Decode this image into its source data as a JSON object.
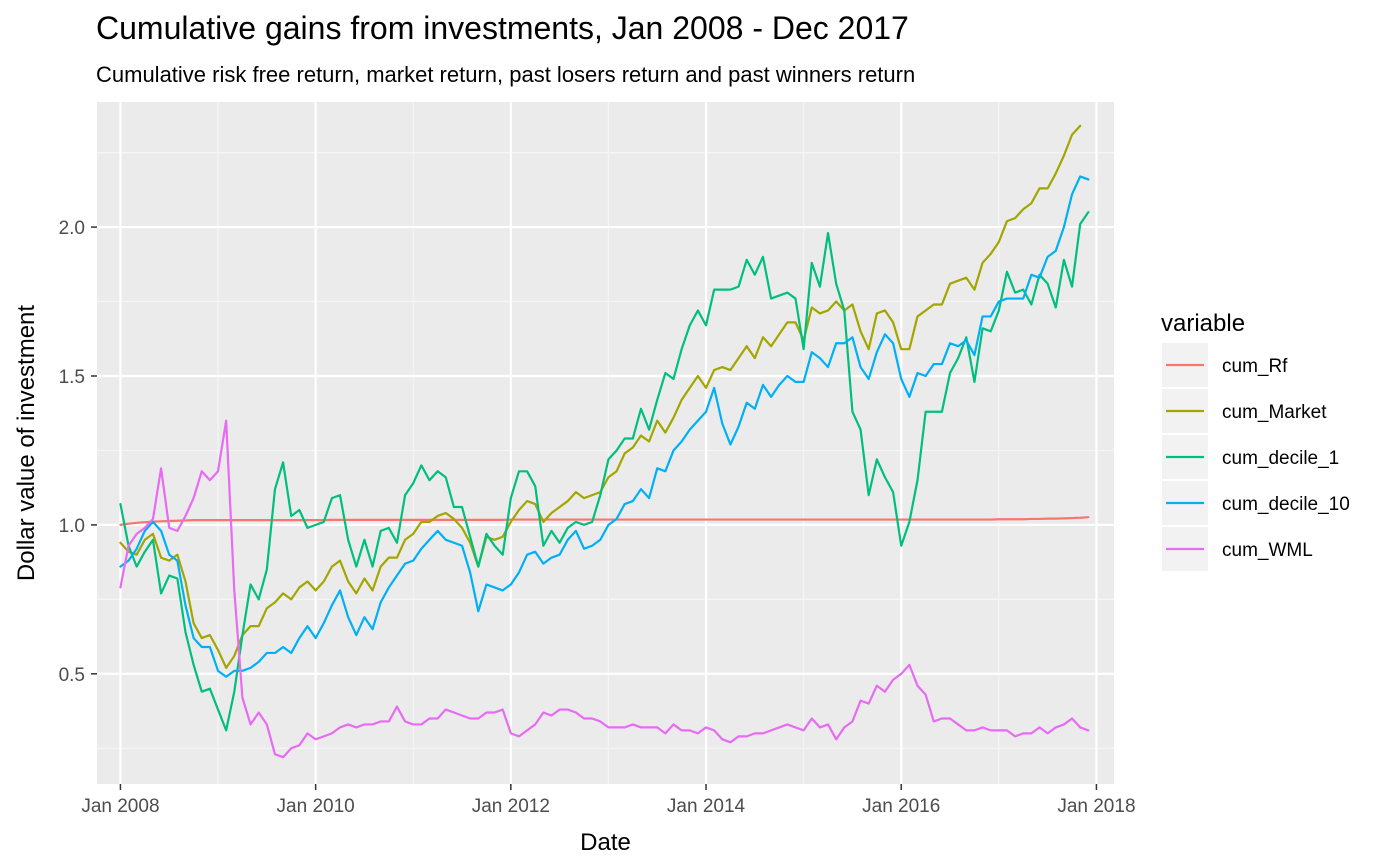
{
  "chart_data": {
    "type": "line",
    "title": "Cumulative gains from investments, Jan 2008 - Dec 2017",
    "subtitle": "Cumulative risk free return, market return, past losers return and past winners return",
    "xlabel": "Date",
    "ylabel": "Dollar value of investment",
    "xlim": [
      2007.76,
      2018.18
    ],
    "ylim": [
      0.13,
      2.42
    ],
    "x_ticks": [
      {
        "value": 2008,
        "label": "Jan 2008"
      },
      {
        "value": 2010,
        "label": "Jan 2010"
      },
      {
        "value": 2012,
        "label": "Jan 2012"
      },
      {
        "value": 2014,
        "label": "Jan 2014"
      },
      {
        "value": 2016,
        "label": "Jan 2016"
      },
      {
        "value": 2018,
        "label": "Jan 2018"
      }
    ],
    "y_ticks": [
      {
        "value": 0.5,
        "label": "0.5"
      },
      {
        "value": 1.0,
        "label": "1.0"
      },
      {
        "value": 1.5,
        "label": "1.5"
      },
      {
        "value": 2.0,
        "label": "2.0"
      }
    ],
    "grid": true,
    "legend": {
      "title": "variable",
      "position": "right"
    },
    "x_start": "Jan 2008",
    "x_step": "1 month",
    "series": [
      {
        "name": "cum_Rf",
        "color": "#F8766D",
        "values": [
          1.0,
          1.004,
          1.007,
          1.009,
          1.011,
          1.012,
          1.013,
          1.014,
          1.015,
          1.016,
          1.016,
          1.016,
          1.016,
          1.016,
          1.016,
          1.016,
          1.016,
          1.016,
          1.016,
          1.016,
          1.016,
          1.016,
          1.016,
          1.016,
          1.016,
          1.016,
          1.017,
          1.017,
          1.017,
          1.017,
          1.017,
          1.017,
          1.017,
          1.017,
          1.017,
          1.017,
          1.017,
          1.017,
          1.017,
          1.017,
          1.017,
          1.017,
          1.017,
          1.017,
          1.017,
          1.017,
          1.017,
          1.017,
          1.018,
          1.018,
          1.018,
          1.018,
          1.018,
          1.018,
          1.018,
          1.018,
          1.018,
          1.018,
          1.018,
          1.018,
          1.018,
          1.018,
          1.018,
          1.018,
          1.018,
          1.018,
          1.018,
          1.018,
          1.018,
          1.018,
          1.018,
          1.018,
          1.018,
          1.018,
          1.018,
          1.018,
          1.018,
          1.018,
          1.018,
          1.018,
          1.018,
          1.018,
          1.018,
          1.018,
          1.018,
          1.018,
          1.018,
          1.018,
          1.018,
          1.018,
          1.018,
          1.018,
          1.018,
          1.018,
          1.018,
          1.018,
          1.018,
          1.018,
          1.018,
          1.018,
          1.018,
          1.018,
          1.018,
          1.018,
          1.018,
          1.018,
          1.018,
          1.018,
          1.019,
          1.019,
          1.019,
          1.019,
          1.02,
          1.02,
          1.021,
          1.021,
          1.022,
          1.023,
          1.024,
          1.026
        ]
      },
      {
        "name": "cum_Market",
        "color": "#A3A500",
        "values": [
          0.94,
          0.91,
          0.9,
          0.95,
          0.97,
          0.89,
          0.88,
          0.9,
          0.81,
          0.67,
          0.62,
          0.63,
          0.58,
          0.52,
          0.56,
          0.63,
          0.66,
          0.66,
          0.72,
          0.74,
          0.77,
          0.75,
          0.79,
          0.81,
          0.78,
          0.81,
          0.86,
          0.88,
          0.81,
          0.77,
          0.82,
          0.78,
          0.86,
          0.89,
          0.89,
          0.95,
          0.97,
          1.01,
          1.01,
          1.03,
          1.04,
          1.02,
          0.99,
          0.94,
          0.86,
          0.96,
          0.95,
          0.96,
          1.01,
          1.05,
          1.08,
          1.07,
          1.01,
          1.04,
          1.06,
          1.08,
          1.11,
          1.09,
          1.1,
          1.11,
          1.16,
          1.18,
          1.24,
          1.26,
          1.3,
          1.28,
          1.35,
          1.31,
          1.36,
          1.42,
          1.46,
          1.5,
          1.46,
          1.52,
          1.53,
          1.52,
          1.56,
          1.6,
          1.56,
          1.63,
          1.6,
          1.64,
          1.68,
          1.68,
          1.62,
          1.73,
          1.71,
          1.72,
          1.75,
          1.72,
          1.74,
          1.65,
          1.59,
          1.71,
          1.72,
          1.68,
          1.59,
          1.59,
          1.7,
          1.72,
          1.74,
          1.74,
          1.81,
          1.82,
          1.83,
          1.79,
          1.88,
          1.91,
          1.95,
          2.02,
          2.03,
          2.06,
          2.08,
          2.13,
          2.13,
          2.18,
          2.24,
          2.31,
          2.34
        ]
      },
      {
        "name": "cum_decile_1",
        "color": "#00BF7D",
        "values": [
          1.07,
          0.93,
          0.86,
          0.91,
          0.95,
          0.77,
          0.83,
          0.82,
          0.64,
          0.53,
          0.44,
          0.45,
          0.38,
          0.31,
          0.44,
          0.63,
          0.8,
          0.75,
          0.85,
          1.12,
          1.21,
          1.03,
          1.05,
          0.99,
          1.0,
          1.01,
          1.09,
          1.1,
          0.95,
          0.86,
          0.95,
          0.86,
          0.98,
          0.99,
          0.94,
          1.1,
          1.14,
          1.2,
          1.15,
          1.18,
          1.16,
          1.06,
          1.06,
          0.96,
          0.86,
          0.97,
          0.93,
          0.9,
          1.09,
          1.18,
          1.18,
          1.13,
          0.93,
          0.98,
          0.94,
          0.99,
          1.01,
          1.0,
          1.01,
          1.1,
          1.22,
          1.25,
          1.29,
          1.29,
          1.39,
          1.32,
          1.42,
          1.51,
          1.49,
          1.59,
          1.67,
          1.72,
          1.67,
          1.79,
          1.79,
          1.79,
          1.8,
          1.89,
          1.84,
          1.9,
          1.76,
          1.77,
          1.78,
          1.76,
          1.59,
          1.88,
          1.8,
          1.98,
          1.81,
          1.72,
          1.38,
          1.32,
          1.1,
          1.22,
          1.16,
          1.11,
          0.93,
          1.01,
          1.15,
          1.38,
          1.38,
          1.38,
          1.51,
          1.56,
          1.63,
          1.48,
          1.66,
          1.65,
          1.72,
          1.85,
          1.78,
          1.79,
          1.74,
          1.84,
          1.81,
          1.73,
          1.89,
          1.8,
          2.01,
          2.05
        ]
      },
      {
        "name": "cum_decile_10",
        "color": "#00B0F6",
        "values": [
          0.86,
          0.88,
          0.92,
          0.98,
          1.01,
          0.98,
          0.9,
          0.88,
          0.73,
          0.62,
          0.59,
          0.59,
          0.51,
          0.49,
          0.51,
          0.51,
          0.52,
          0.54,
          0.57,
          0.57,
          0.59,
          0.57,
          0.62,
          0.66,
          0.62,
          0.67,
          0.73,
          0.78,
          0.69,
          0.63,
          0.69,
          0.65,
          0.74,
          0.79,
          0.83,
          0.87,
          0.88,
          0.92,
          0.95,
          0.98,
          0.95,
          0.94,
          0.93,
          0.84,
          0.71,
          0.8,
          0.79,
          0.78,
          0.8,
          0.84,
          0.9,
          0.91,
          0.87,
          0.89,
          0.9,
          0.95,
          0.98,
          0.92,
          0.93,
          0.95,
          1.0,
          1.02,
          1.07,
          1.08,
          1.12,
          1.09,
          1.19,
          1.18,
          1.25,
          1.28,
          1.32,
          1.35,
          1.38,
          1.46,
          1.34,
          1.27,
          1.33,
          1.41,
          1.39,
          1.47,
          1.43,
          1.47,
          1.5,
          1.48,
          1.48,
          1.58,
          1.56,
          1.53,
          1.61,
          1.61,
          1.63,
          1.53,
          1.49,
          1.58,
          1.64,
          1.61,
          1.49,
          1.43,
          1.51,
          1.5,
          1.54,
          1.54,
          1.61,
          1.6,
          1.62,
          1.57,
          1.7,
          1.7,
          1.75,
          1.76,
          1.76,
          1.76,
          1.84,
          1.83,
          1.9,
          1.92,
          2.0,
          2.11,
          2.17,
          2.16
        ]
      },
      {
        "name": "cum_WML",
        "color": "#E76BF3",
        "values": [
          0.79,
          0.93,
          0.97,
          0.99,
          1.02,
          1.19,
          0.99,
          0.98,
          1.03,
          1.09,
          1.18,
          1.15,
          1.18,
          1.35,
          0.78,
          0.42,
          0.33,
          0.37,
          0.33,
          0.23,
          0.22,
          0.25,
          0.26,
          0.3,
          0.28,
          0.29,
          0.3,
          0.32,
          0.33,
          0.32,
          0.33,
          0.33,
          0.34,
          0.34,
          0.39,
          0.34,
          0.33,
          0.33,
          0.35,
          0.35,
          0.38,
          0.37,
          0.36,
          0.35,
          0.35,
          0.37,
          0.37,
          0.38,
          0.3,
          0.29,
          0.31,
          0.33,
          0.37,
          0.36,
          0.38,
          0.38,
          0.37,
          0.35,
          0.35,
          0.34,
          0.32,
          0.32,
          0.32,
          0.33,
          0.32,
          0.32,
          0.32,
          0.3,
          0.33,
          0.31,
          0.31,
          0.3,
          0.32,
          0.31,
          0.28,
          0.27,
          0.29,
          0.29,
          0.3,
          0.3,
          0.31,
          0.32,
          0.33,
          0.32,
          0.31,
          0.35,
          0.32,
          0.33,
          0.28,
          0.32,
          0.34,
          0.41,
          0.4,
          0.46,
          0.44,
          0.48,
          0.5,
          0.53,
          0.46,
          0.43,
          0.34,
          0.35,
          0.35,
          0.33,
          0.31,
          0.31,
          0.32,
          0.31,
          0.31,
          0.31,
          0.29,
          0.3,
          0.3,
          0.32,
          0.3,
          0.32,
          0.33,
          0.35,
          0.32,
          0.31
        ]
      }
    ]
  }
}
